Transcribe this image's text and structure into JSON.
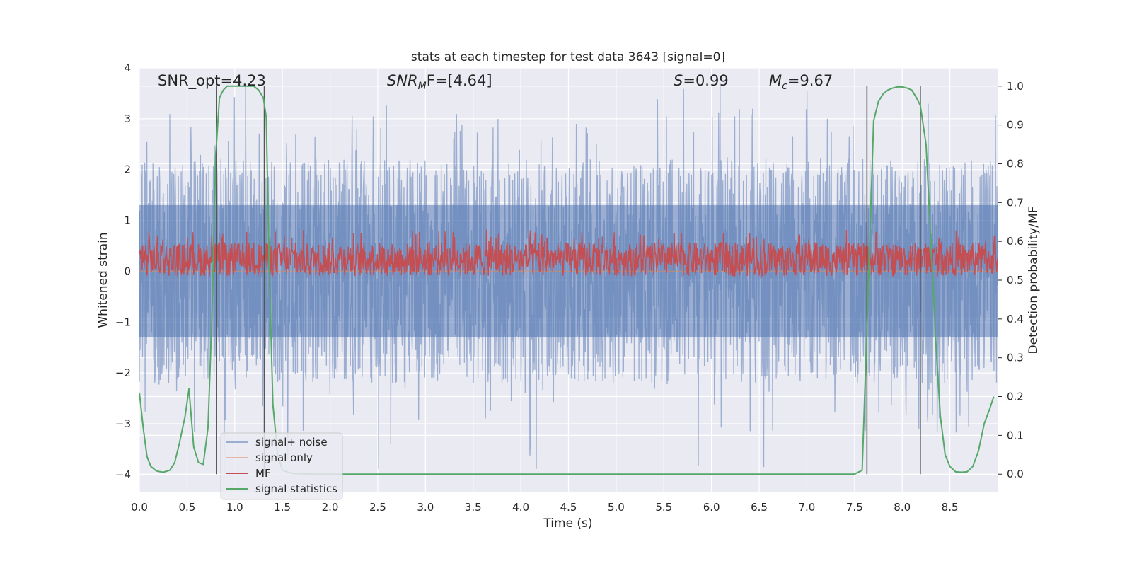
{
  "chart_data": {
    "type": "line",
    "title": "stats at each timestep for test data 3643 [signal=0]",
    "xlabel": "Time (s)",
    "ylabel": "Whitened strain",
    "y2label": "Detection probability/MF",
    "xlim": [
      0,
      9.0
    ],
    "ylim": [
      -4.35,
      4
    ],
    "y2lim": [
      -0.047,
      1.047
    ],
    "xticks": [
      "0.0",
      "0.5",
      "1.0",
      "1.5",
      "2.0",
      "2.5",
      "3.0",
      "3.5",
      "4.0",
      "4.5",
      "5.0",
      "5.5",
      "6.0",
      "6.5",
      "7.0",
      "7.5",
      "8.0",
      "8.5"
    ],
    "xtick_values": [
      0,
      0.5,
      1,
      1.5,
      2,
      2.5,
      3,
      3.5,
      4,
      4.5,
      5,
      5.5,
      6,
      6.5,
      7,
      7.5,
      8,
      8.5
    ],
    "yticks": [
      "4",
      "3",
      "2",
      "1",
      "0",
      "−1",
      "−2",
      "−3",
      "−4"
    ],
    "ytick_values": [
      4,
      3,
      2,
      1,
      0,
      -1,
      -2,
      -3,
      -4
    ],
    "y2ticks": [
      "1.0",
      "0.9",
      "0.8",
      "0.7",
      "0.6",
      "0.5",
      "0.4",
      "0.3",
      "0.2",
      "0.1",
      "0.0"
    ],
    "y2tick_values": [
      1.0,
      0.9,
      0.8,
      0.7,
      0.6,
      0.5,
      0.4,
      0.3,
      0.2,
      0.1,
      0.0
    ],
    "grid": true,
    "legend_position": "bottom-left",
    "annotations": [
      {
        "name": "snr-opt",
        "text": "SNR_opt=4.23"
      },
      {
        "name": "snr-mf",
        "text": "SNR",
        "sub": "M",
        "rest": "F=[4.64]",
        "italic": true
      },
      {
        "name": "s-stat",
        "text": "S",
        "rest": "=0.99",
        "italic": true
      },
      {
        "name": "mc-stat",
        "text": "M",
        "sub": "c",
        "rest": "=9.67",
        "italic": true
      }
    ],
    "vlines": [
      0.81,
      1.31,
      7.63,
      8.19
    ],
    "series": [
      {
        "name": "signal+ noise",
        "color": "#4c72b0",
        "alpha": 0.5,
        "axis": "left",
        "kind": "noise",
        "envelope": 1.3,
        "spikes_max": 3.7,
        "spikes_min": -3.9
      },
      {
        "name": "signal only",
        "color": "#dd8452",
        "alpha": 0.5,
        "axis": "left",
        "kind": "flat",
        "value": 0.0
      },
      {
        "name": "MF",
        "color": "#c44e52",
        "axis": "right",
        "kind": "mf",
        "baseline": 0.52,
        "range": [
          0.51,
          0.63
        ]
      },
      {
        "name": "signal statistics",
        "color": "#55a868",
        "axis": "right",
        "kind": "curve",
        "x": [
          0.0,
          0.04,
          0.08,
          0.12,
          0.18,
          0.25,
          0.32,
          0.37,
          0.42,
          0.48,
          0.52,
          0.57,
          0.62,
          0.67,
          0.72,
          0.76,
          0.8,
          0.84,
          0.88,
          0.92,
          0.96,
          1.0,
          1.05,
          1.1,
          1.2,
          1.25,
          1.3,
          1.33,
          1.36,
          1.4,
          1.45,
          1.5,
          1.6,
          1.8,
          2.0,
          3.0,
          4.0,
          5.0,
          6.0,
          7.0,
          7.5,
          7.58,
          7.62,
          7.66,
          7.7,
          7.75,
          7.8,
          7.85,
          7.9,
          7.95,
          8.0,
          8.05,
          8.1,
          8.15,
          8.19,
          8.25,
          8.3,
          8.35,
          8.4,
          8.45,
          8.5,
          8.56,
          8.62,
          8.68,
          8.74,
          8.8,
          8.86,
          8.92,
          8.96
        ],
        "y": [
          0.21,
          0.12,
          0.045,
          0.02,
          0.008,
          0.005,
          0.01,
          0.03,
          0.08,
          0.15,
          0.22,
          0.07,
          0.03,
          0.025,
          0.12,
          0.4,
          0.82,
          0.97,
          0.99,
          1.0,
          1.0,
          1.0,
          1.0,
          1.0,
          1.0,
          0.99,
          0.97,
          0.92,
          0.55,
          0.18,
          0.05,
          0.01,
          0.002,
          0.0,
          0.0,
          0.0,
          0.0,
          0.0,
          0.0,
          0.0,
          0.0,
          0.01,
          0.3,
          0.6,
          0.91,
          0.96,
          0.98,
          0.99,
          0.995,
          0.998,
          0.998,
          0.995,
          0.99,
          0.97,
          0.95,
          0.85,
          0.6,
          0.35,
          0.15,
          0.05,
          0.02,
          0.006,
          0.005,
          0.006,
          0.02,
          0.06,
          0.13,
          0.17,
          0.2
        ]
      }
    ]
  }
}
